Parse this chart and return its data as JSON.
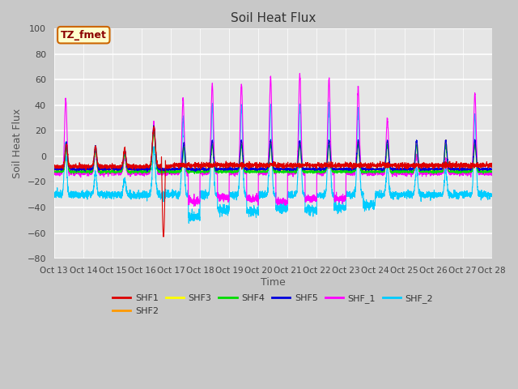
{
  "title": "Soil Heat Flux",
  "xlabel": "Time",
  "ylabel": "Soil Heat Flux",
  "ylim": [
    -80,
    100
  ],
  "yticks": [
    -80,
    -60,
    -40,
    -20,
    0,
    20,
    40,
    60,
    80,
    100
  ],
  "xtick_labels": [
    "Oct 13",
    "Oct 14",
    "Oct 15",
    "Oct 16",
    "Oct 17",
    "Oct 18",
    "Oct 19",
    "Oct 20",
    "Oct 21",
    "Oct 22",
    "Oct 23",
    "Oct 24",
    "Oct 25",
    "Oct 26",
    "Oct 27",
    "Oct 28"
  ],
  "series_colors": {
    "SHF1": "#dd0000",
    "SHF2": "#ff9900",
    "SHF3": "#ffff00",
    "SHF4": "#00dd00",
    "SHF5": "#0000dd",
    "SHF_1": "#ff00ff",
    "SHF_2": "#00ccff"
  },
  "annotation_text": "TZ_fmet",
  "annotation_bg": "#ffffcc",
  "annotation_border": "#cc6600",
  "fig_bg": "#c8c8c8",
  "plot_bg": "#e8e8e8",
  "grid_color": "#ffffff"
}
